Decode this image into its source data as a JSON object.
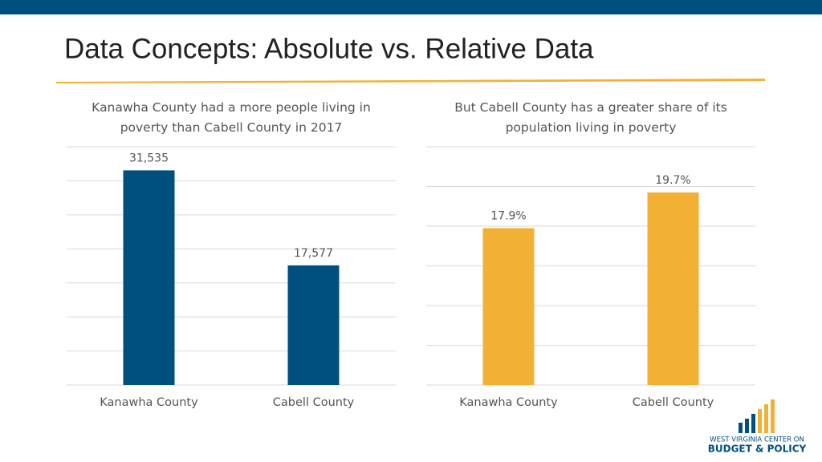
{
  "slide": {
    "title": "Data Concepts: Absolute vs. Relative Data"
  },
  "chart_data": [
    {
      "type": "bar",
      "title": "Kanawha County had a more people living in poverty than Cabell County in 2017",
      "categories": [
        "Kanawha County",
        "Cabell County"
      ],
      "values": [
        31535,
        17577
      ],
      "value_labels": [
        "31,535",
        "17,577"
      ],
      "color": "#00507f",
      "ylim": [
        0,
        35000
      ],
      "yticks": [
        0,
        5000,
        10000,
        15000,
        20000,
        25000,
        30000,
        35000
      ],
      "grid": true
    },
    {
      "type": "bar",
      "title": "But Cabell County has a greater share of its population living in poverty",
      "categories": [
        "Kanawha County",
        "Cabell County"
      ],
      "values": [
        17.9,
        19.7
      ],
      "value_labels": [
        "17.9%",
        "19.7%"
      ],
      "color": "#f2b134",
      "ylim": [
        10,
        22
      ],
      "yticks": [
        10,
        12,
        14,
        16,
        18,
        20,
        22
      ],
      "grid": true
    }
  ],
  "logo": {
    "line1": "WEST VIRGINIA CENTER ON",
    "line2": "BUDGET & POLICY"
  }
}
